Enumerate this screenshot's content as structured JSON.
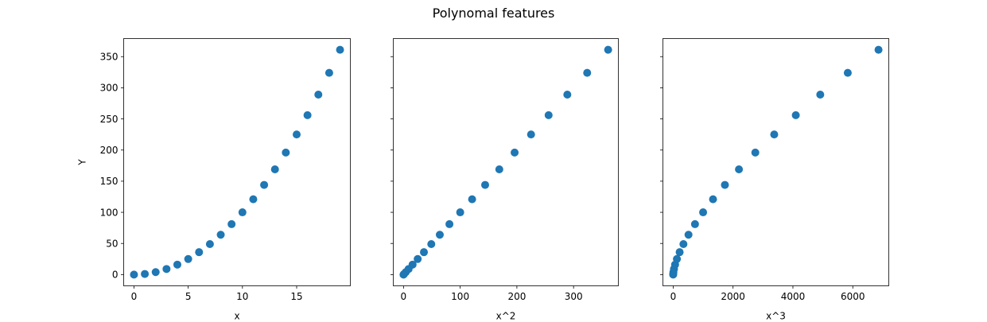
{
  "figure": {
    "title": "Polynomal features"
  },
  "chart_data": [
    {
      "type": "scatter",
      "title": "",
      "xlabel": "x",
      "ylabel": "Y",
      "color": "#1f77b4",
      "xlim": [
        -0.95,
        19.95
      ],
      "ylim": [
        -18.05,
        379.05
      ],
      "xticks": [
        0,
        5,
        10,
        15
      ],
      "yticks": [
        0,
        50,
        100,
        150,
        200,
        250,
        300,
        350
      ],
      "x": [
        0,
        1,
        2,
        3,
        4,
        5,
        6,
        7,
        8,
        9,
        10,
        11,
        12,
        13,
        14,
        15,
        16,
        17,
        18,
        19
      ],
      "y": [
        0,
        1,
        4,
        9,
        16,
        25,
        36,
        49,
        64,
        81,
        100,
        121,
        144,
        169,
        196,
        225,
        256,
        289,
        324,
        361
      ]
    },
    {
      "type": "scatter",
      "title": "",
      "xlabel": "x^2",
      "ylabel": "",
      "color": "#1f77b4",
      "xlim": [
        -18.05,
        379.05
      ],
      "ylim": [
        -18.05,
        379.05
      ],
      "xticks": [
        0,
        100,
        200,
        300
      ],
      "yticks": [
        0,
        50,
        100,
        150,
        200,
        250,
        300,
        350
      ],
      "x": [
        0,
        1,
        4,
        9,
        16,
        25,
        36,
        49,
        64,
        81,
        100,
        121,
        144,
        169,
        196,
        225,
        256,
        289,
        324,
        361
      ],
      "y": [
        0,
        1,
        4,
        9,
        16,
        25,
        36,
        49,
        64,
        81,
        100,
        121,
        144,
        169,
        196,
        225,
        256,
        289,
        324,
        361
      ]
    },
    {
      "type": "scatter",
      "title": "",
      "xlabel": "x^3",
      "ylabel": "",
      "color": "#1f77b4",
      "xlim": [
        -342.95,
        7201.95
      ],
      "ylim": [
        -18.05,
        379.05
      ],
      "xticks": [
        0,
        2000,
        4000,
        6000
      ],
      "yticks": [
        0,
        50,
        100,
        150,
        200,
        250,
        300,
        350
      ],
      "x": [
        0,
        1,
        8,
        27,
        64,
        125,
        216,
        343,
        512,
        729,
        1000,
        1331,
        1728,
        2197,
        2744,
        3375,
        4096,
        4913,
        5832,
        6859
      ],
      "y": [
        0,
        1,
        4,
        9,
        16,
        25,
        36,
        49,
        64,
        81,
        100,
        121,
        144,
        169,
        196,
        225,
        256,
        289,
        324,
        361
      ]
    }
  ]
}
